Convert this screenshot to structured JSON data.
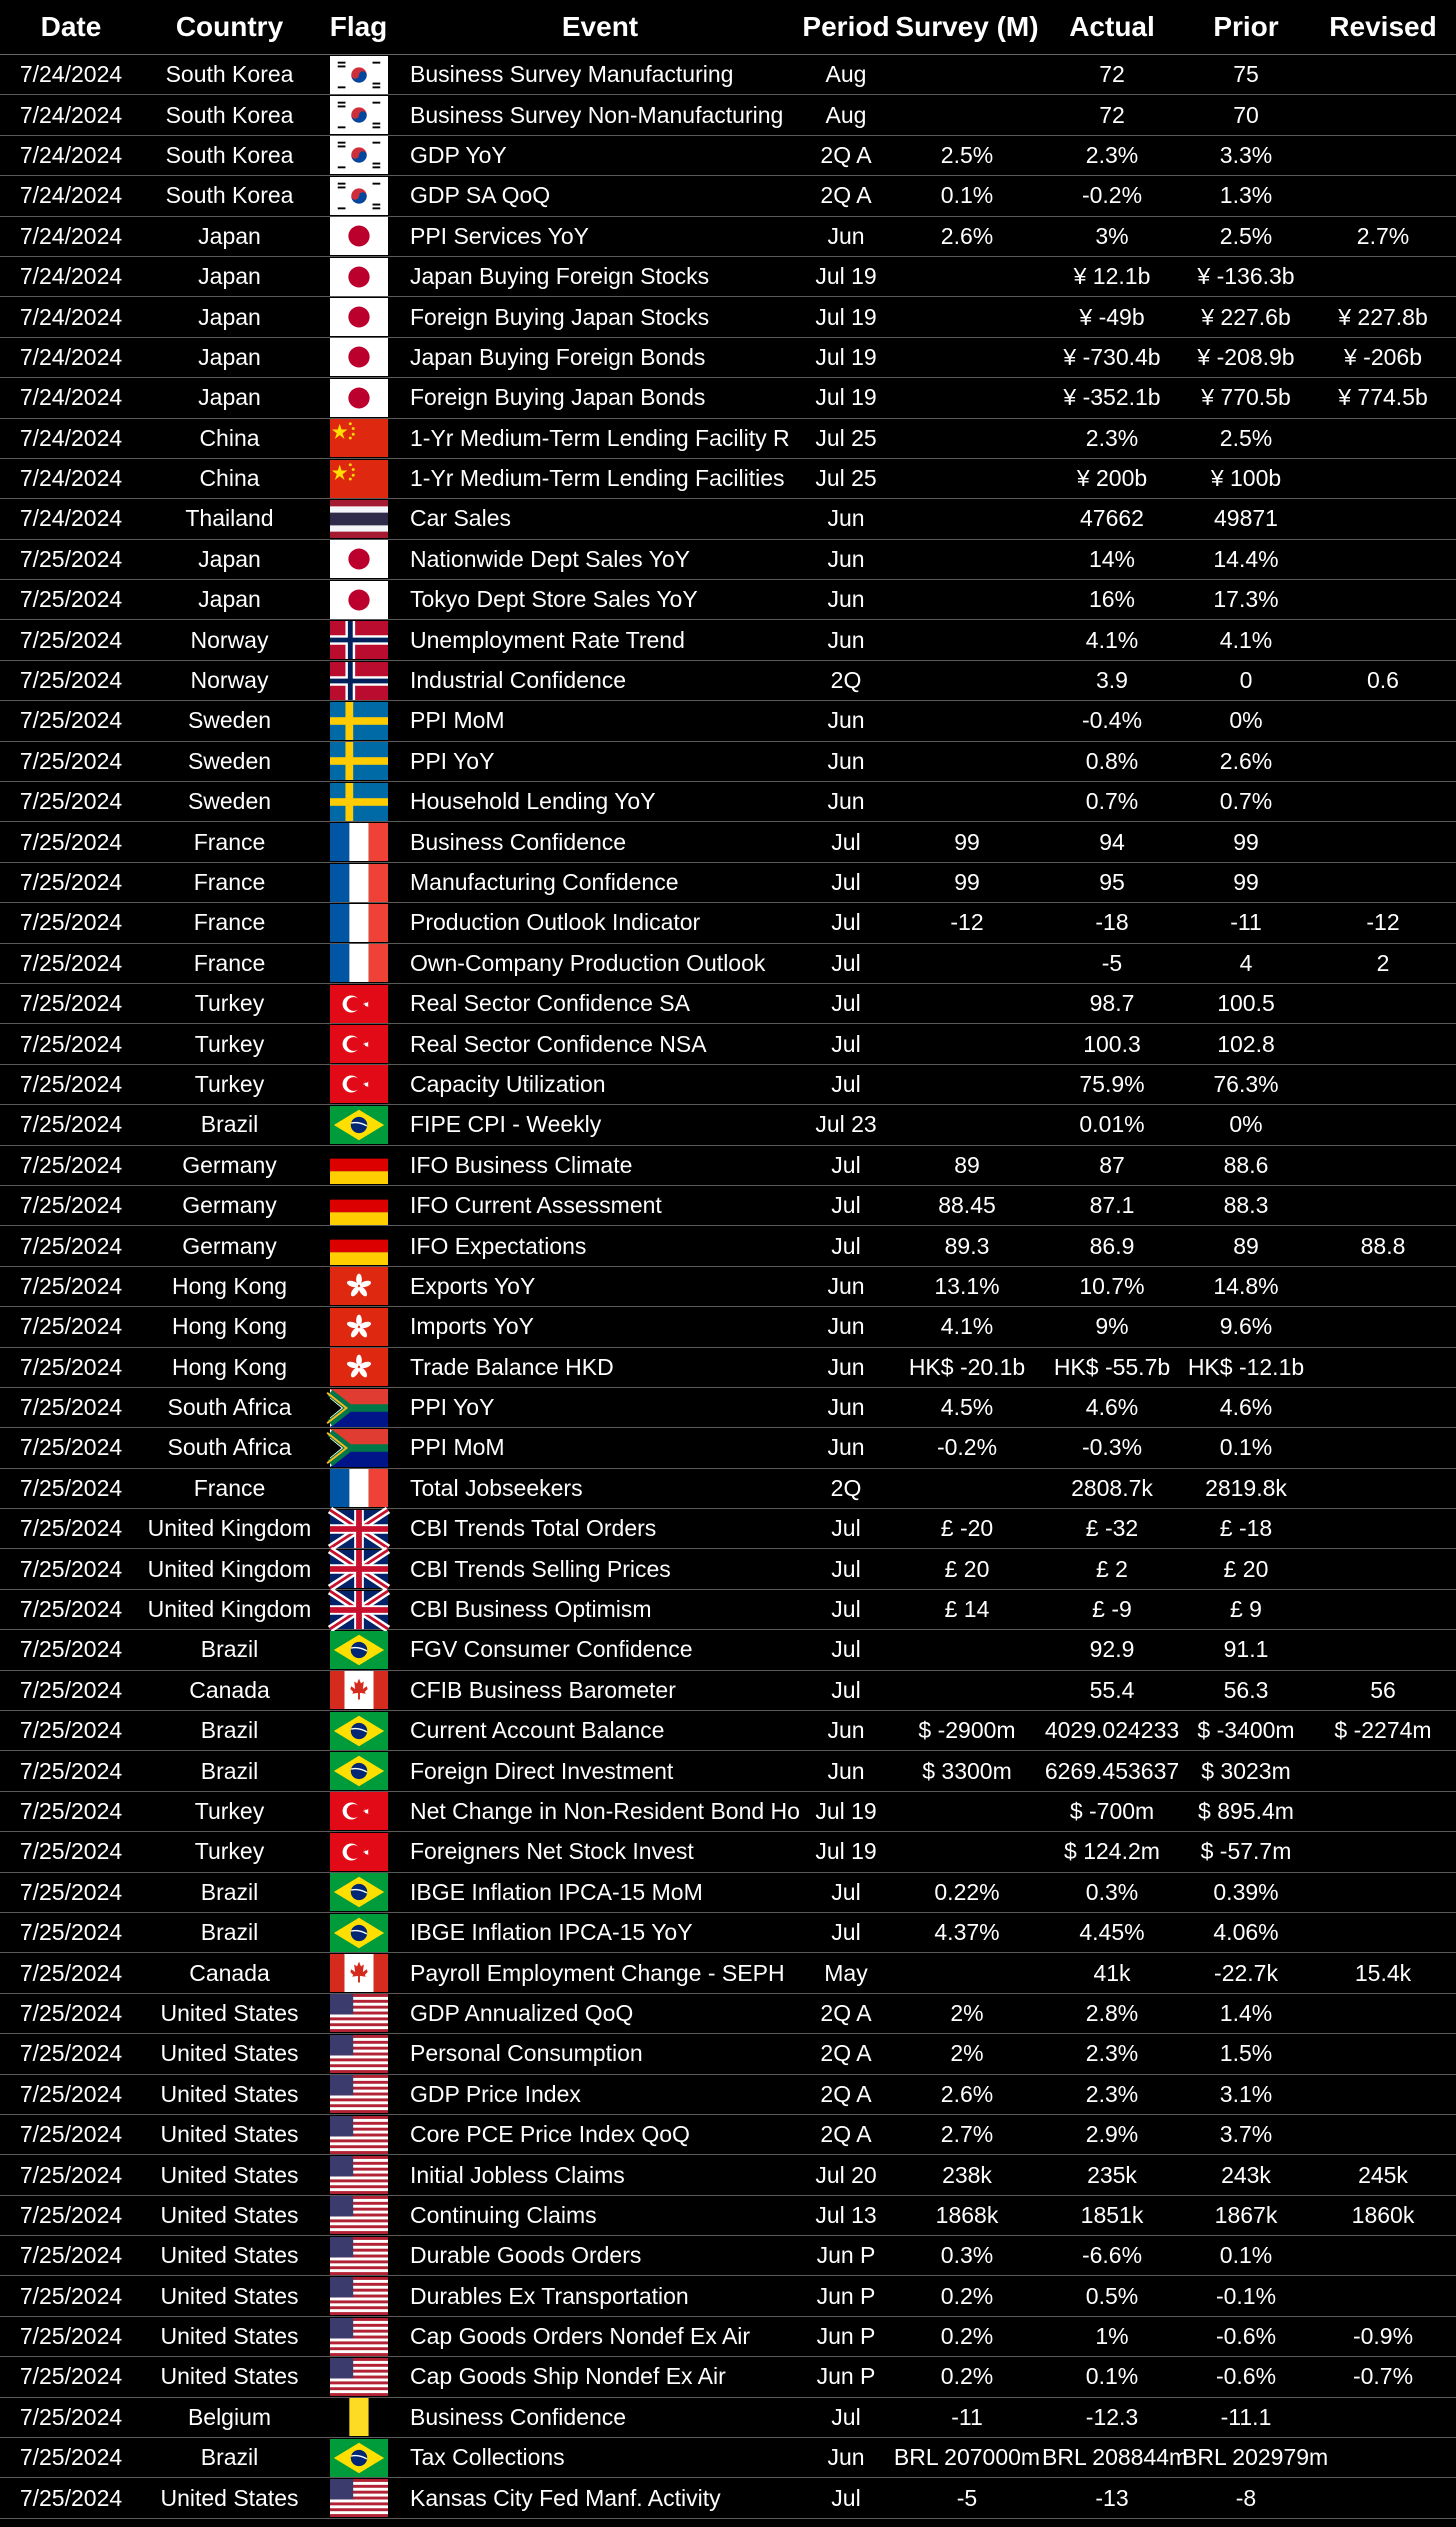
{
  "headers": [
    "Date",
    "Country",
    "Flag",
    "Event",
    "Period",
    "Survey (M)",
    "Actual",
    "Prior",
    "Revised"
  ],
  "rows": [
    {
      "date": "7/24/2024",
      "country": "South Korea",
      "flag": "kr",
      "event": "Business Survey Manufacturing",
      "period": "Aug",
      "survey": "",
      "actual": "72",
      "prior": "75",
      "revised": ""
    },
    {
      "date": "7/24/2024",
      "country": "South Korea",
      "flag": "kr",
      "event": "Business Survey Non-Manufacturing",
      "period": "Aug",
      "survey": "",
      "actual": "72",
      "prior": "70",
      "revised": ""
    },
    {
      "date": "7/24/2024",
      "country": "South Korea",
      "flag": "kr",
      "event": "GDP YoY",
      "period": "2Q A",
      "survey": "2.5%",
      "actual": "2.3%",
      "prior": "3.3%",
      "revised": ""
    },
    {
      "date": "7/24/2024",
      "country": "South Korea",
      "flag": "kr",
      "event": "GDP SA QoQ",
      "period": "2Q A",
      "survey": "0.1%",
      "actual": "-0.2%",
      "prior": "1.3%",
      "revised": ""
    },
    {
      "date": "7/24/2024",
      "country": "Japan",
      "flag": "jp",
      "event": "PPI Services YoY",
      "period": "Jun",
      "survey": "2.6%",
      "actual": "3%",
      "prior": "2.5%",
      "revised": "2.7%"
    },
    {
      "date": "7/24/2024",
      "country": "Japan",
      "flag": "jp",
      "event": "Japan Buying Foreign Stocks",
      "period": "Jul 19",
      "survey": "",
      "actual": "¥ 12.1b",
      "prior": "¥ -136.3b",
      "revised": ""
    },
    {
      "date": "7/24/2024",
      "country": "Japan",
      "flag": "jp",
      "event": "Foreign Buying Japan Stocks",
      "period": "Jul 19",
      "survey": "",
      "actual": "¥ -49b",
      "prior": "¥ 227.6b",
      "revised": "¥ 227.8b"
    },
    {
      "date": "7/24/2024",
      "country": "Japan",
      "flag": "jp",
      "event": "Japan Buying Foreign Bonds",
      "period": "Jul 19",
      "survey": "",
      "actual": "¥ -730.4b",
      "prior": "¥ -208.9b",
      "revised": "¥ -206b"
    },
    {
      "date": "7/24/2024",
      "country": "Japan",
      "flag": "jp",
      "event": "Foreign Buying Japan Bonds",
      "period": "Jul 19",
      "survey": "",
      "actual": "¥ -352.1b",
      "prior": "¥ 770.5b",
      "revised": "¥ 774.5b"
    },
    {
      "date": "7/24/2024",
      "country": "China",
      "flag": "cn",
      "event": "1-Yr Medium-Term Lending Facility R",
      "period": "Jul 25",
      "survey": "",
      "actual": "2.3%",
      "prior": "2.5%",
      "revised": ""
    },
    {
      "date": "7/24/2024",
      "country": "China",
      "flag": "cn",
      "event": "1-Yr Medium-Term Lending Facilities",
      "period": "Jul 25",
      "survey": "",
      "actual": "¥ 200b",
      "prior": "¥ 100b",
      "revised": ""
    },
    {
      "date": "7/24/2024",
      "country": "Thailand",
      "flag": "th",
      "event": "Car Sales",
      "period": "Jun",
      "survey": "",
      "actual": "47662",
      "prior": "49871",
      "revised": ""
    },
    {
      "date": "7/25/2024",
      "country": "Japan",
      "flag": "jp",
      "event": "Nationwide Dept Sales YoY",
      "period": "Jun",
      "survey": "",
      "actual": "14%",
      "prior": "14.4%",
      "revised": ""
    },
    {
      "date": "7/25/2024",
      "country": "Japan",
      "flag": "jp",
      "event": "Tokyo Dept Store Sales YoY",
      "period": "Jun",
      "survey": "",
      "actual": "16%",
      "prior": "17.3%",
      "revised": ""
    },
    {
      "date": "7/25/2024",
      "country": "Norway",
      "flag": "no",
      "event": "Unemployment Rate Trend",
      "period": "Jun",
      "survey": "",
      "actual": "4.1%",
      "prior": "4.1%",
      "revised": ""
    },
    {
      "date": "7/25/2024",
      "country": "Norway",
      "flag": "no",
      "event": "Industrial Confidence",
      "period": "2Q",
      "survey": "",
      "actual": "3.9",
      "prior": "0",
      "revised": "0.6"
    },
    {
      "date": "7/25/2024",
      "country": "Sweden",
      "flag": "se",
      "event": "PPI MoM",
      "period": "Jun",
      "survey": "",
      "actual": "-0.4%",
      "prior": "0%",
      "revised": ""
    },
    {
      "date": "7/25/2024",
      "country": "Sweden",
      "flag": "se",
      "event": "PPI YoY",
      "period": "Jun",
      "survey": "",
      "actual": "0.8%",
      "prior": "2.6%",
      "revised": ""
    },
    {
      "date": "7/25/2024",
      "country": "Sweden",
      "flag": "se",
      "event": "Household Lending YoY",
      "period": "Jun",
      "survey": "",
      "actual": "0.7%",
      "prior": "0.7%",
      "revised": ""
    },
    {
      "date": "7/25/2024",
      "country": "France",
      "flag": "fr",
      "event": "Business Confidence",
      "period": "Jul",
      "survey": "99",
      "actual": "94",
      "prior": "99",
      "revised": ""
    },
    {
      "date": "7/25/2024",
      "country": "France",
      "flag": "fr",
      "event": "Manufacturing Confidence",
      "period": "Jul",
      "survey": "99",
      "actual": "95",
      "prior": "99",
      "revised": ""
    },
    {
      "date": "7/25/2024",
      "country": "France",
      "flag": "fr",
      "event": "Production Outlook Indicator",
      "period": "Jul",
      "survey": "-12",
      "actual": "-18",
      "prior": "-11",
      "revised": "-12"
    },
    {
      "date": "7/25/2024",
      "country": "France",
      "flag": "fr",
      "event": "Own-Company Production Outlook",
      "period": "Jul",
      "survey": "",
      "actual": "-5",
      "prior": "4",
      "revised": "2"
    },
    {
      "date": "7/25/2024",
      "country": "Turkey",
      "flag": "tr",
      "event": "Real Sector Confidence SA",
      "period": "Jul",
      "survey": "",
      "actual": "98.7",
      "prior": "100.5",
      "revised": ""
    },
    {
      "date": "7/25/2024",
      "country": "Turkey",
      "flag": "tr",
      "event": "Real Sector Confidence NSA",
      "period": "Jul",
      "survey": "",
      "actual": "100.3",
      "prior": "102.8",
      "revised": ""
    },
    {
      "date": "7/25/2024",
      "country": "Turkey",
      "flag": "tr",
      "event": "Capacity Utilization",
      "period": "Jul",
      "survey": "",
      "actual": "75.9%",
      "prior": "76.3%",
      "revised": ""
    },
    {
      "date": "7/25/2024",
      "country": "Brazil",
      "flag": "br",
      "event": "FIPE CPI - Weekly",
      "period": "Jul 23",
      "survey": "",
      "actual": "0.01%",
      "prior": "0%",
      "revised": ""
    },
    {
      "date": "7/25/2024",
      "country": "Germany",
      "flag": "de",
      "event": "IFO Business Climate",
      "period": "Jul",
      "survey": "89",
      "actual": "87",
      "prior": "88.6",
      "revised": ""
    },
    {
      "date": "7/25/2024",
      "country": "Germany",
      "flag": "de",
      "event": "IFO Current Assessment",
      "period": "Jul",
      "survey": "88.45",
      "actual": "87.1",
      "prior": "88.3",
      "revised": ""
    },
    {
      "date": "7/25/2024",
      "country": "Germany",
      "flag": "de",
      "event": "IFO Expectations",
      "period": "Jul",
      "survey": "89.3",
      "actual": "86.9",
      "prior": "89",
      "revised": "88.8"
    },
    {
      "date": "7/25/2024",
      "country": "Hong Kong",
      "flag": "hk",
      "event": "Exports YoY",
      "period": "Jun",
      "survey": "13.1%",
      "actual": "10.7%",
      "prior": "14.8%",
      "revised": ""
    },
    {
      "date": "7/25/2024",
      "country": "Hong Kong",
      "flag": "hk",
      "event": "Imports YoY",
      "period": "Jun",
      "survey": "4.1%",
      "actual": "9%",
      "prior": "9.6%",
      "revised": ""
    },
    {
      "date": "7/25/2024",
      "country": "Hong Kong",
      "flag": "hk",
      "event": "Trade Balance HKD",
      "period": "Jun",
      "survey": "HK$ -20.1b",
      "actual": "HK$ -55.7b",
      "prior": "HK$ -12.1b",
      "revised": ""
    },
    {
      "date": "7/25/2024",
      "country": "South Africa",
      "flag": "za",
      "event": "PPI YoY",
      "period": "Jun",
      "survey": "4.5%",
      "actual": "4.6%",
      "prior": "4.6%",
      "revised": ""
    },
    {
      "date": "7/25/2024",
      "country": "South Africa",
      "flag": "za",
      "event": "PPI MoM",
      "period": "Jun",
      "survey": "-0.2%",
      "actual": "-0.3%",
      "prior": "0.1%",
      "revised": ""
    },
    {
      "date": "7/25/2024",
      "country": "France",
      "flag": "fr",
      "event": "Total Jobseekers",
      "period": "2Q",
      "survey": "",
      "actual": "2808.7k",
      "prior": "2819.8k",
      "revised": ""
    },
    {
      "date": "7/25/2024",
      "country": "United Kingdom",
      "flag": "gb",
      "event": "CBI Trends Total Orders",
      "period": "Jul",
      "survey": "£ -20",
      "actual": "£ -32",
      "prior": "£ -18",
      "revised": ""
    },
    {
      "date": "7/25/2024",
      "country": "United Kingdom",
      "flag": "gb",
      "event": "CBI Trends Selling Prices",
      "period": "Jul",
      "survey": "£ 20",
      "actual": "£ 2",
      "prior": "£ 20",
      "revised": ""
    },
    {
      "date": "7/25/2024",
      "country": "United Kingdom",
      "flag": "gb",
      "event": "CBI Business Optimism",
      "period": "Jul",
      "survey": "£ 14",
      "actual": "£ -9",
      "prior": "£ 9",
      "revised": ""
    },
    {
      "date": "7/25/2024",
      "country": "Brazil",
      "flag": "br",
      "event": "FGV Consumer Confidence",
      "period": "Jul",
      "survey": "",
      "actual": "92.9",
      "prior": "91.1",
      "revised": ""
    },
    {
      "date": "7/25/2024",
      "country": "Canada",
      "flag": "ca",
      "event": "CFIB Business Barometer",
      "period": "Jul",
      "survey": "",
      "actual": "55.4",
      "prior": "56.3",
      "revised": "56"
    },
    {
      "date": "7/25/2024",
      "country": "Brazil",
      "flag": "br",
      "event": "Current Account Balance",
      "period": "Jun",
      "survey": "$ -2900m",
      "actual": "4029.024233",
      "prior": "$ -3400m",
      "revised": "$ -2274m"
    },
    {
      "date": "7/25/2024",
      "country": "Brazil",
      "flag": "br",
      "event": "Foreign Direct Investment",
      "period": "Jun",
      "survey": "$ 3300m",
      "actual": "6269.453637",
      "prior": "$ 3023m",
      "revised": ""
    },
    {
      "date": "7/25/2024",
      "country": "Turkey",
      "flag": "tr",
      "event": "Net Change in Non-Resident Bond Ho",
      "period": "Jul 19",
      "survey": "",
      "actual": "$ -700m",
      "prior": "$ 895.4m",
      "revised": ""
    },
    {
      "date": "7/25/2024",
      "country": "Turkey",
      "flag": "tr",
      "event": "Foreigners Net Stock Invest",
      "period": "Jul 19",
      "survey": "",
      "actual": "$ 124.2m",
      "prior": "$ -57.7m",
      "revised": ""
    },
    {
      "date": "7/25/2024",
      "country": "Brazil",
      "flag": "br",
      "event": "IBGE Inflation IPCA-15 MoM",
      "period": "Jul",
      "survey": "0.22%",
      "actual": "0.3%",
      "prior": "0.39%",
      "revised": ""
    },
    {
      "date": "7/25/2024",
      "country": "Brazil",
      "flag": "br",
      "event": "IBGE Inflation IPCA-15 YoY",
      "period": "Jul",
      "survey": "4.37%",
      "actual": "4.45%",
      "prior": "4.06%",
      "revised": ""
    },
    {
      "date": "7/25/2024",
      "country": "Canada",
      "flag": "ca",
      "event": "Payroll Employment Change - SEPH",
      "period": "May",
      "survey": "",
      "actual": "41k",
      "prior": "-22.7k",
      "revised": "15.4k"
    },
    {
      "date": "7/25/2024",
      "country": "United States",
      "flag": "us",
      "event": "GDP Annualized QoQ",
      "period": "2Q A",
      "survey": "2%",
      "actual": "2.8%",
      "prior": "1.4%",
      "revised": ""
    },
    {
      "date": "7/25/2024",
      "country": "United States",
      "flag": "us",
      "event": "Personal Consumption",
      "period": "2Q A",
      "survey": "2%",
      "actual": "2.3%",
      "prior": "1.5%",
      "revised": ""
    },
    {
      "date": "7/25/2024",
      "country": "United States",
      "flag": "us",
      "event": "GDP Price Index",
      "period": "2Q A",
      "survey": "2.6%",
      "actual": "2.3%",
      "prior": "3.1%",
      "revised": ""
    },
    {
      "date": "7/25/2024",
      "country": "United States",
      "flag": "us",
      "event": "Core PCE Price Index QoQ",
      "period": "2Q A",
      "survey": "2.7%",
      "actual": "2.9%",
      "prior": "3.7%",
      "revised": ""
    },
    {
      "date": "7/25/2024",
      "country": "United States",
      "flag": "us",
      "event": "Initial Jobless Claims",
      "period": "Jul 20",
      "survey": "238k",
      "actual": "235k",
      "prior": "243k",
      "revised": "245k"
    },
    {
      "date": "7/25/2024",
      "country": "United States",
      "flag": "us",
      "event": "Continuing Claims",
      "period": "Jul 13",
      "survey": "1868k",
      "actual": "1851k",
      "prior": "1867k",
      "revised": "1860k"
    },
    {
      "date": "7/25/2024",
      "country": "United States",
      "flag": "us",
      "event": "Durable Goods Orders",
      "period": "Jun P",
      "survey": "0.3%",
      "actual": "-6.6%",
      "prior": "0.1%",
      "revised": ""
    },
    {
      "date": "7/25/2024",
      "country": "United States",
      "flag": "us",
      "event": "Durables Ex Transportation",
      "period": "Jun P",
      "survey": "0.2%",
      "actual": "0.5%",
      "prior": "-0.1%",
      "revised": ""
    },
    {
      "date": "7/25/2024",
      "country": "United States",
      "flag": "us",
      "event": "Cap Goods Orders Nondef Ex Air",
      "period": "Jun P",
      "survey": "0.2%",
      "actual": "1%",
      "prior": "-0.6%",
      "revised": "-0.9%"
    },
    {
      "date": "7/25/2024",
      "country": "United States",
      "flag": "us",
      "event": "Cap Goods Ship Nondef Ex Air",
      "period": "Jun P",
      "survey": "0.2%",
      "actual": "0.1%",
      "prior": "-0.6%",
      "revised": "-0.7%"
    },
    {
      "date": "7/25/2024",
      "country": "Belgium",
      "flag": "be",
      "event": "Business Confidence",
      "period": "Jul",
      "survey": "-11",
      "actual": "-12.3",
      "prior": "-11.1",
      "revised": ""
    },
    {
      "date": "7/25/2024",
      "country": "Brazil",
      "flag": "br",
      "event": "Tax Collections",
      "period": "Jun",
      "survey": "BRL 207000m",
      "actual": "BRL 208844m",
      "prior": "BRL 202979m",
      "revised": ""
    },
    {
      "date": "7/25/2024",
      "country": "United States",
      "flag": "us",
      "event": "Kansas City Fed Manf. Activity",
      "period": "Jul",
      "survey": "-5",
      "actual": "-13",
      "prior": "-8",
      "revised": ""
    }
  ]
}
